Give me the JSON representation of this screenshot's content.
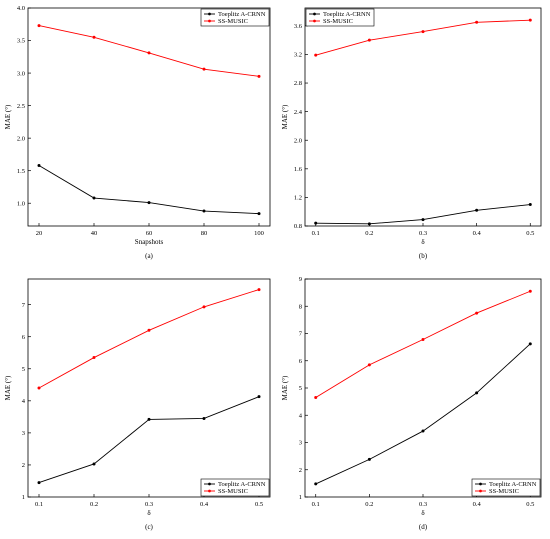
{
  "chart_data": [
    {
      "type": "line",
      "caption": "(a)",
      "xlabel": "Snapshots",
      "ylabel": "MAE (°)",
      "x": [
        20,
        40,
        60,
        80,
        100
      ],
      "xticks": [
        "20",
        "40",
        "60",
        "80",
        "100"
      ],
      "xlim": [
        16,
        104
      ],
      "ylim": [
        0.65,
        4.0
      ],
      "yticks": [
        "1.0",
        "1.5",
        "2.0",
        "2.5",
        "3.0",
        "3.5",
        "4.0"
      ],
      "legend_position": "top-right",
      "series": [
        {
          "name": "Toeplitz A-CRNN",
          "color": "#000000",
          "values": [
            1.58,
            1.08,
            1.01,
            0.88,
            0.84
          ]
        },
        {
          "name": "SS-MUSIC",
          "color": "#ff0000",
          "values": [
            3.73,
            3.55,
            3.31,
            3.06,
            2.95
          ]
        }
      ]
    },
    {
      "type": "line",
      "caption": "(b)",
      "xlabel": "δ",
      "ylabel": "MAE (°)",
      "x": [
        0.1,
        0.2,
        0.3,
        0.4,
        0.5
      ],
      "xticks": [
        "0.1",
        "0.2",
        "0.3",
        "0.4",
        "0.5"
      ],
      "xlim": [
        0.08,
        0.52
      ],
      "ylim": [
        0.8,
        3.85
      ],
      "yticks": [
        "0.8",
        "1.2",
        "1.6",
        "2.0",
        "2.4",
        "2.8",
        "3.2",
        "3.6"
      ],
      "legend_position": "top-left",
      "series": [
        {
          "name": "Toeplitz A-CRNN",
          "color": "#000000",
          "values": [
            0.84,
            0.83,
            0.89,
            1.02,
            1.1
          ]
        },
        {
          "name": "SS-MUSIC",
          "color": "#ff0000",
          "values": [
            3.19,
            3.4,
            3.52,
            3.65,
            3.68
          ]
        }
      ]
    },
    {
      "type": "line",
      "caption": "(c)",
      "xlabel": "δ",
      "ylabel": "MAE (°)",
      "x": [
        0.1,
        0.2,
        0.3,
        0.4,
        0.5
      ],
      "xticks": [
        "0.1",
        "0.2",
        "0.3",
        "0.4",
        "0.5"
      ],
      "xlim": [
        0.08,
        0.52
      ],
      "ylim": [
        1.0,
        7.8
      ],
      "yticks": [
        "1",
        "2",
        "3",
        "4",
        "5",
        "6",
        "7"
      ],
      "legend_position": "bottom-right",
      "series": [
        {
          "name": "Toeplitz A-CRNN",
          "color": "#000000",
          "values": [
            1.45,
            2.03,
            3.42,
            3.45,
            4.13
          ]
        },
        {
          "name": "SS-MUSIC",
          "color": "#ff0000",
          "values": [
            4.4,
            5.35,
            6.2,
            6.93,
            7.47
          ]
        }
      ]
    },
    {
      "type": "line",
      "caption": "(d)",
      "xlabel": "δ",
      "ylabel": "MAE (°)",
      "x": [
        0.1,
        0.2,
        0.3,
        0.4,
        0.5
      ],
      "xticks": [
        "0.1",
        "0.2",
        "0.3",
        "0.4",
        "0.5"
      ],
      "xlim": [
        0.08,
        0.52
      ],
      "ylim": [
        1.0,
        9.0
      ],
      "yticks": [
        "1",
        "2",
        "3",
        "4",
        "5",
        "6",
        "7",
        "8",
        "9"
      ],
      "legend_position": "bottom-right",
      "series": [
        {
          "name": "Toeplitz A-CRNN",
          "color": "#000000",
          "values": [
            1.48,
            2.38,
            3.42,
            4.82,
            6.62
          ]
        },
        {
          "name": "SS-MUSIC",
          "color": "#ff0000",
          "values": [
            4.65,
            5.85,
            6.78,
            7.75,
            8.55
          ]
        }
      ]
    }
  ]
}
